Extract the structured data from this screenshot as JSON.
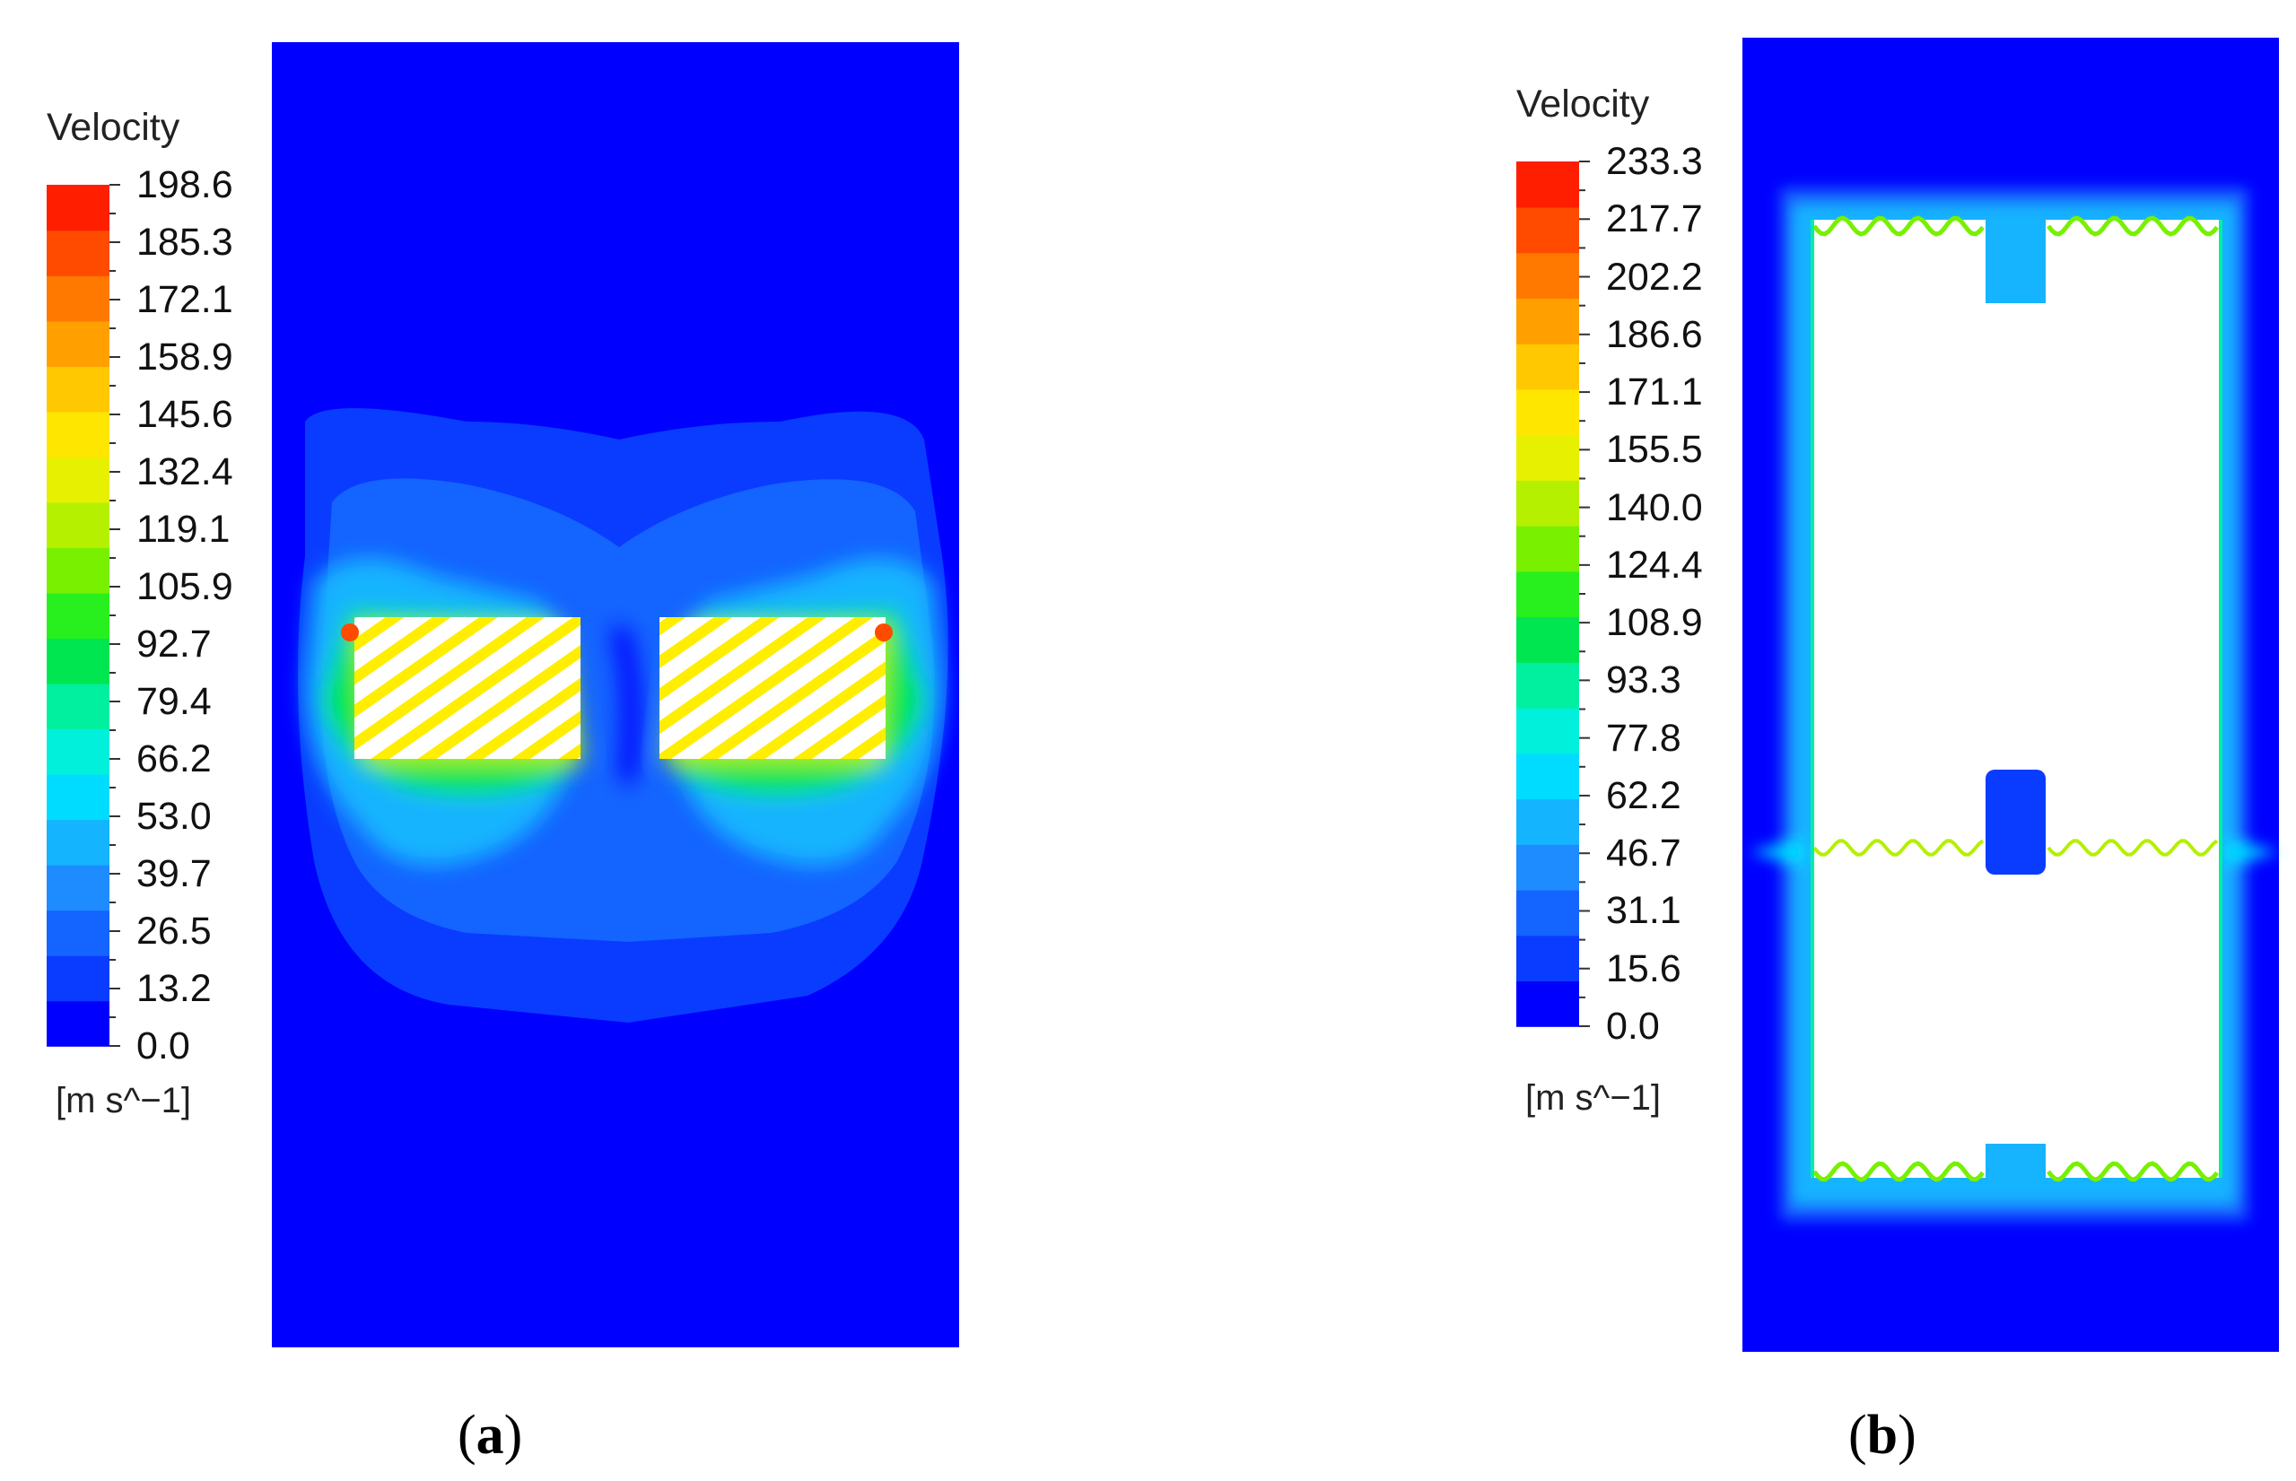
{
  "panels": [
    {
      "id": "a",
      "caption_letter": "a",
      "legend": {
        "title": "Velocity",
        "unit": "[m s^−1]",
        "ticks": [
          "198.6",
          "185.3",
          "172.1",
          "158.9",
          "145.6",
          "132.4",
          "119.1",
          "105.9",
          "92.7",
          "79.4",
          "66.2",
          "53.0",
          "39.7",
          "26.5",
          "13.2",
          "0.0"
        ]
      }
    },
    {
      "id": "b",
      "caption_letter": "b",
      "legend": {
        "title": "Velocity",
        "unit": "[m s^−1]",
        "ticks": [
          "233.3",
          "217.7",
          "202.2",
          "186.6",
          "171.1",
          "155.5",
          "140.0",
          "124.4",
          "108.9",
          "93.3",
          "77.8",
          "62.2",
          "46.7",
          "31.1",
          "15.6",
          "0.0"
        ]
      }
    }
  ],
  "colormap": [
    "#0000ff",
    "#0a3cff",
    "#1464ff",
    "#1e8cff",
    "#14b4ff",
    "#00dcff",
    "#00f0dc",
    "#00f0a0",
    "#00e650",
    "#28f01e",
    "#78f000",
    "#b4f000",
    "#e6f000",
    "#ffe600",
    "#ffc800",
    "#ffa000",
    "#ff7800",
    "#ff4b00",
    "#ff1e00"
  ]
}
